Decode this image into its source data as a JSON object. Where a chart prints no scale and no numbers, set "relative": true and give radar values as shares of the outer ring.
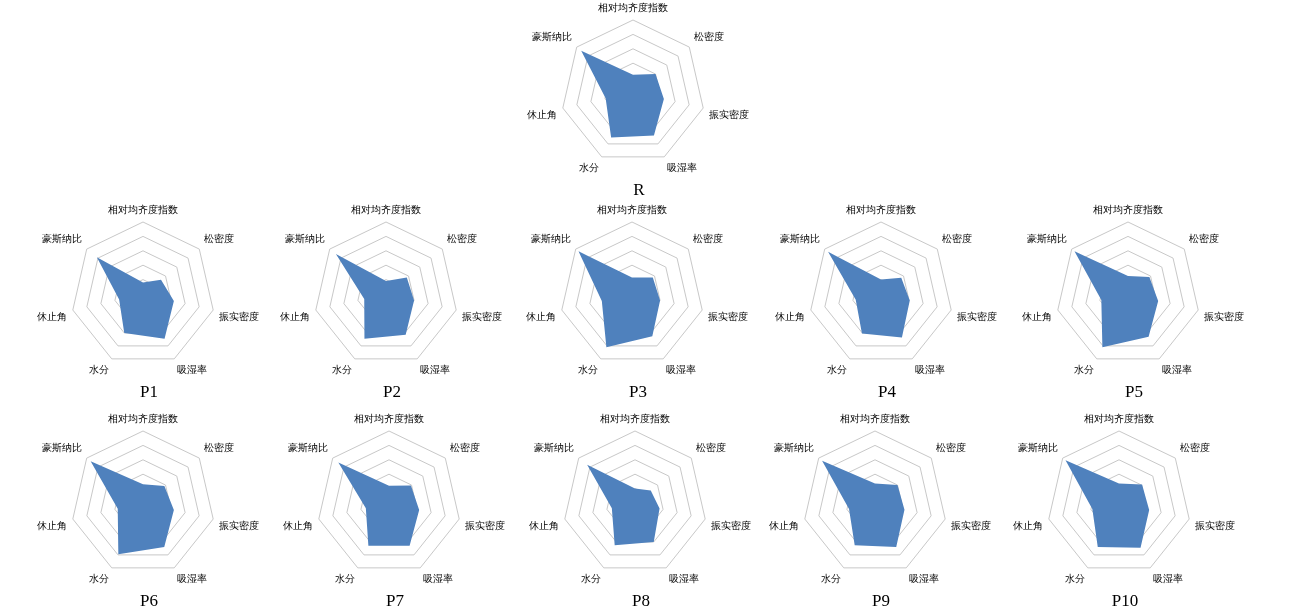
{
  "chart_data": [
    {
      "type": "radar",
      "title": "R",
      "categories": [
        "相对均齐度指数",
        "松密度",
        "振实密度",
        "吸湿率",
        "水分",
        "休止角",
        "豪斯纳比"
      ],
      "relative": true,
      "grid": true,
      "series": [
        {
          "color": "#4f81bd",
          "values": [
            0.24,
            0.4,
            0.44,
            0.67,
            0.7,
            0.39,
            0.92
          ]
        }
      ]
    },
    {
      "type": "radar",
      "title": "P1",
      "categories": [
        "相对均齐度指数",
        "松密度",
        "振实密度",
        "吸湿率",
        "水分",
        "休止角",
        "豪斯纳比"
      ],
      "relative": true,
      "grid": true,
      "series": [
        {
          "color": "#4f81bd",
          "values": [
            0.16,
            0.32,
            0.44,
            0.69,
            0.6,
            0.34,
            0.82
          ]
        }
      ]
    },
    {
      "type": "radar",
      "title": "P2",
      "categories": [
        "相对均齐度指数",
        "松密度",
        "振实密度",
        "吸湿率",
        "水分",
        "休止角",
        "豪斯纳比"
      ],
      "relative": true,
      "grid": true,
      "series": [
        {
          "color": "#4f81bd",
          "values": [
            0.18,
            0.37,
            0.4,
            0.63,
            0.69,
            0.31,
            0.89
          ]
        }
      ]
    },
    {
      "type": "radar",
      "title": "P3",
      "categories": [
        "相对均齐度指数",
        "松密度",
        "振实密度",
        "吸湿率",
        "水分",
        "休止角",
        "豪斯纳比"
      ],
      "relative": true,
      "grid": true,
      "series": [
        {
          "color": "#4f81bd",
          "values": [
            0.23,
            0.37,
            0.4,
            0.65,
            0.82,
            0.43,
            0.95
          ]
        }
      ]
    },
    {
      "type": "radar",
      "title": "P4",
      "categories": [
        "相对均齐度指数",
        "松密度",
        "振实密度",
        "吸湿率",
        "水分",
        "休止角",
        "豪斯纳比"
      ],
      "relative": true,
      "grid": true,
      "series": [
        {
          "color": "#4f81bd",
          "values": [
            0.2,
            0.36,
            0.41,
            0.67,
            0.61,
            0.36,
            0.94
          ]
        }
      ]
    },
    {
      "type": "radar",
      "title": "P5",
      "categories": [
        "相对均齐度指数",
        "松密度",
        "振实密度",
        "吸湿率",
        "水分",
        "休止角",
        "豪斯纳比"
      ],
      "relative": true,
      "grid": true,
      "series": [
        {
          "color": "#4f81bd",
          "values": [
            0.25,
            0.38,
            0.43,
            0.66,
            0.82,
            0.38,
            0.95
          ]
        }
      ]
    },
    {
      "type": "radar",
      "title": "P6",
      "categories": [
        "相对均齐度指数",
        "松密度",
        "振实密度",
        "吸湿率",
        "水分",
        "休止角",
        "豪斯纳比"
      ],
      "relative": true,
      "grid": true,
      "series": [
        {
          "color": "#4f81bd",
          "values": [
            0.26,
            0.38,
            0.44,
            0.68,
            0.79,
            0.36,
            0.93
          ]
        }
      ]
    },
    {
      "type": "radar",
      "title": "P7",
      "categories": [
        "相对均齐度指数",
        "松密度",
        "振实密度",
        "吸湿率",
        "水分",
        "休止角",
        "豪斯纳比"
      ],
      "relative": true,
      "grid": true,
      "series": [
        {
          "color": "#4f81bd",
          "values": [
            0.24,
            0.39,
            0.43,
            0.66,
            0.66,
            0.33,
            0.9
          ]
        }
      ]
    },
    {
      "type": "radar",
      "title": "P8",
      "categories": [
        "相对均齐度指数",
        "松密度",
        "振实密度",
        "吸湿率",
        "水分",
        "休止角",
        "豪斯纳比"
      ],
      "relative": true,
      "grid": true,
      "series": [
        {
          "color": "#4f81bd",
          "values": [
            0.2,
            0.28,
            0.35,
            0.6,
            0.65,
            0.33,
            0.85
          ]
        }
      ]
    },
    {
      "type": "radar",
      "title": "P9",
      "categories": [
        "相对均齐度指数",
        "松密度",
        "振实密度",
        "吸湿率",
        "水分",
        "休止角",
        "豪斯纳比"
      ],
      "relative": true,
      "grid": true,
      "series": [
        {
          "color": "#4f81bd",
          "values": [
            0.27,
            0.4,
            0.42,
            0.68,
            0.65,
            0.37,
            0.94
          ]
        }
      ]
    },
    {
      "type": "radar",
      "title": "P10",
      "categories": [
        "相对均齐度指数",
        "松密度",
        "振实密度",
        "吸湿率",
        "水分",
        "休止角",
        "豪斯纳比"
      ],
      "relative": true,
      "grid": true,
      "series": [
        {
          "color": "#4f81bd",
          "values": [
            0.27,
            0.41,
            0.43,
            0.69,
            0.68,
            0.38,
            0.95
          ]
        }
      ]
    }
  ]
}
